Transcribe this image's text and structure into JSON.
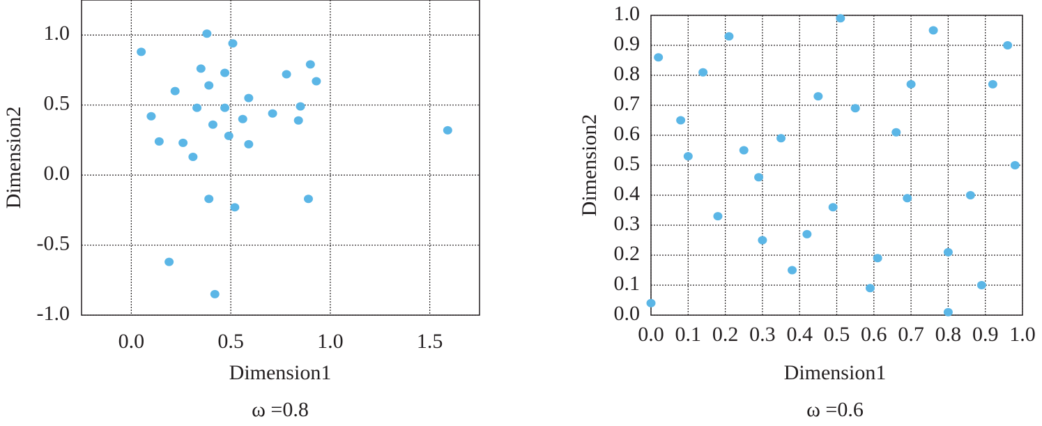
{
  "chart_data": [
    {
      "type": "scatter",
      "x_label": "Dimension1",
      "y_label": "Dimension2",
      "caption": "ω =0.8",
      "color": "#5bb6e6",
      "grid": true,
      "xlim": [
        -0.25,
        1.75
      ],
      "ylim": [
        -1.0,
        1.25
      ],
      "xticks": [
        {
          "value": 0,
          "label": "0.0"
        },
        0.5,
        {
          "value": 1,
          "label": "1.0"
        },
        1.5
      ],
      "yticks": [
        {
          "value": -1,
          "label": "-1.0"
        },
        -0.5,
        {
          "value": 0,
          "label": "0.0"
        },
        0.5,
        {
          "value": 1,
          "label": "1.0"
        }
      ],
      "x": [
        0.05,
        0.38,
        0.51,
        0.35,
        0.47,
        0.22,
        0.39,
        0.1,
        0.33,
        0.47,
        0.59,
        0.41,
        0.56,
        0.49,
        0.14,
        0.26,
        0.31,
        0.59,
        0.71,
        0.78,
        0.9,
        0.93,
        0.85,
        0.84,
        1.59,
        0.39,
        0.52,
        0.89,
        0.19,
        0.42
      ],
      "values": [
        0.88,
        1.01,
        0.94,
        0.76,
        0.73,
        0.6,
        0.64,
        0.42,
        0.48,
        0.48,
        0.55,
        0.36,
        0.4,
        0.28,
        0.24,
        0.23,
        0.13,
        0.22,
        0.44,
        0.72,
        0.79,
        0.67,
        0.49,
        0.39,
        0.32,
        -0.17,
        -0.23,
        -0.17,
        -0.62,
        -0.85
      ]
    },
    {
      "type": "scatter",
      "x_label": "Dimension1",
      "y_label": "Dimension2",
      "caption": "ω =0.6",
      "color": "#5bb6e6",
      "grid": true,
      "xlim": [
        0,
        1
      ],
      "ylim": [
        0,
        1
      ],
      "xticks": [
        {
          "value": 0,
          "label": "0.0"
        },
        0.1,
        0.2,
        0.3,
        0.4,
        0.5,
        0.6,
        0.7,
        0.8,
        0.9,
        {
          "value": 1,
          "label": "1.0"
        }
      ],
      "yticks": [
        {
          "value": 0,
          "label": "0.0"
        },
        0.1,
        0.2,
        0.3,
        0.4,
        0.5,
        0.6,
        0.7,
        0.8,
        0.9,
        {
          "value": 1,
          "label": "1.0"
        }
      ],
      "x": [
        0.0,
        0.02,
        0.08,
        0.1,
        0.14,
        0.18,
        0.21,
        0.25,
        0.29,
        0.3,
        0.35,
        0.38,
        0.42,
        0.45,
        0.49,
        0.51,
        0.55,
        0.59,
        0.61,
        0.66,
        0.69,
        0.7,
        0.76,
        0.8,
        0.8,
        0.86,
        0.89,
        0.92,
        0.96,
        0.98
      ],
      "values": [
        0.04,
        0.86,
        0.65,
        0.53,
        0.81,
        0.33,
        0.93,
        0.55,
        0.46,
        0.25,
        0.59,
        0.15,
        0.27,
        0.73,
        0.36,
        0.99,
        0.69,
        0.09,
        0.19,
        0.61,
        0.39,
        0.77,
        0.95,
        0.01,
        0.21,
        0.4,
        0.1,
        0.77,
        0.9,
        0.5
      ]
    }
  ]
}
